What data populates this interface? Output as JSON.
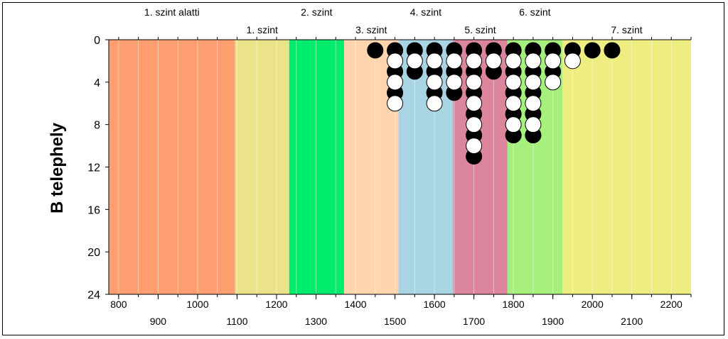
{
  "chart_data": {
    "type": "scatter",
    "title": "",
    "xlabel": "",
    "ylabel": "B telephely",
    "xlim": [
      775,
      2250
    ],
    "ylim": [
      24,
      0
    ],
    "y_ticks": [
      0,
      4,
      8,
      12,
      16,
      20,
      24
    ],
    "x_ticks_upper_row": [
      800,
      1000,
      1200,
      1400,
      1600,
      1800,
      2000,
      2200
    ],
    "x_ticks_lower_row": [
      900,
      1100,
      1300,
      1500,
      1700,
      1900,
      2100
    ],
    "grid": {
      "vertical_lines_every": 50,
      "horizontal": false
    },
    "bands": [
      {
        "label": "1. szint alatti",
        "start": 775,
        "end": 1095,
        "color": "#ff9e70",
        "label_row": "top"
      },
      {
        "label": "1. szint",
        "start": 1095,
        "end": 1232,
        "color": "#ebe389",
        "label_row": "bottom"
      },
      {
        "label": "2. szint",
        "start": 1232,
        "end": 1371,
        "color": "#00ec6c",
        "label_row": "top"
      },
      {
        "label": "3. szint",
        "start": 1371,
        "end": 1509,
        "color": "#ffd5ad",
        "label_row": "bottom"
      },
      {
        "label": "4. szint",
        "start": 1509,
        "end": 1647,
        "color": "#a9d4e4",
        "label_row": "top"
      },
      {
        "label": "5. szint",
        "start": 1647,
        "end": 1785,
        "color": "#db869c",
        "label_row": "bottom"
      },
      {
        "label": "6. szint",
        "start": 1785,
        "end": 1924,
        "color": "#a6f07e",
        "label_row": "top"
      },
      {
        "label": "7. szint",
        "start": 1924,
        "end": 2250,
        "color": "#eded82",
        "label_row": "bottom"
      }
    ],
    "series": [
      {
        "marker": "black-circle",
        "points": [
          [
            1450,
            1
          ],
          [
            1500,
            1
          ],
          [
            1500,
            3
          ],
          [
            1500,
            5
          ],
          [
            1550,
            1
          ],
          [
            1550,
            3
          ],
          [
            1600,
            1
          ],
          [
            1600,
            3
          ],
          [
            1600,
            5
          ],
          [
            1650,
            1
          ],
          [
            1650,
            3
          ],
          [
            1650,
            5
          ],
          [
            1700,
            1
          ],
          [
            1700,
            3
          ],
          [
            1700,
            5
          ],
          [
            1700,
            7
          ],
          [
            1700,
            9
          ],
          [
            1700,
            11
          ],
          [
            1750,
            1
          ],
          [
            1750,
            3
          ],
          [
            1800,
            1
          ],
          [
            1800,
            3
          ],
          [
            1800,
            5
          ],
          [
            1800,
            7
          ],
          [
            1800,
            9
          ],
          [
            1850,
            1
          ],
          [
            1850,
            3
          ],
          [
            1850,
            5
          ],
          [
            1850,
            7
          ],
          [
            1850,
            9
          ],
          [
            1900,
            1
          ],
          [
            1900,
            3
          ],
          [
            1950,
            1
          ],
          [
            2000,
            1
          ],
          [
            2050,
            1
          ]
        ]
      },
      {
        "marker": "white-circle",
        "points": [
          [
            1500,
            2
          ],
          [
            1500,
            4
          ],
          [
            1500,
            6
          ],
          [
            1550,
            2
          ],
          [
            1600,
            2
          ],
          [
            1600,
            4
          ],
          [
            1600,
            6
          ],
          [
            1650,
            2
          ],
          [
            1650,
            4
          ],
          [
            1700,
            2
          ],
          [
            1700,
            4
          ],
          [
            1700,
            6
          ],
          [
            1700,
            8
          ],
          [
            1700,
            10
          ],
          [
            1750,
            2
          ],
          [
            1800,
            2
          ],
          [
            1800,
            4
          ],
          [
            1800,
            6
          ],
          [
            1800,
            8
          ],
          [
            1850,
            2
          ],
          [
            1850,
            4
          ],
          [
            1850,
            6
          ],
          [
            1850,
            8
          ],
          [
            1900,
            2
          ],
          [
            1900,
            4
          ],
          [
            1950,
            2
          ]
        ]
      }
    ]
  }
}
